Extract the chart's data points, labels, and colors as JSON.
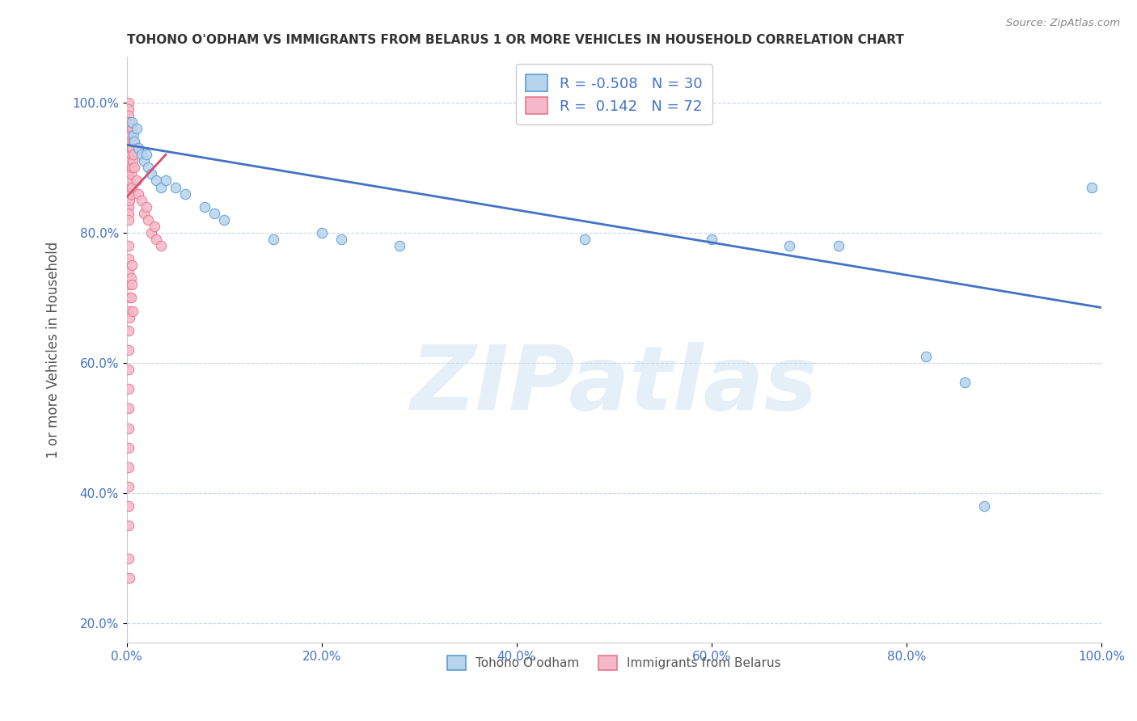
{
  "title": "TOHONO O'ODHAM VS IMMIGRANTS FROM BELARUS 1 OR MORE VEHICLES IN HOUSEHOLD CORRELATION CHART",
  "source": "Source: ZipAtlas.com",
  "ylabel": "1 or more Vehicles in Household",
  "watermark": "ZIPatlas",
  "blue_label": "Tohono O'odham",
  "pink_label": "Immigrants from Belarus",
  "blue_R": -0.508,
  "blue_N": 30,
  "pink_R": 0.142,
  "pink_N": 72,
  "blue_color": "#b8d4ec",
  "pink_color": "#f5b8c8",
  "blue_edge_color": "#5b9bd5",
  "pink_edge_color": "#e8768c",
  "blue_line_color": "#4472c4",
  "pink_line_color": "#d05070",
  "blue_scatter": [
    [
      0.005,
      0.97
    ],
    [
      0.007,
      0.95
    ],
    [
      0.008,
      0.94
    ],
    [
      0.01,
      0.96
    ],
    [
      0.012,
      0.93
    ],
    [
      0.015,
      0.92
    ],
    [
      0.018,
      0.91
    ],
    [
      0.02,
      0.92
    ],
    [
      0.022,
      0.9
    ],
    [
      0.025,
      0.89
    ],
    [
      0.03,
      0.88
    ],
    [
      0.035,
      0.87
    ],
    [
      0.04,
      0.88
    ],
    [
      0.05,
      0.87
    ],
    [
      0.06,
      0.86
    ],
    [
      0.08,
      0.84
    ],
    [
      0.09,
      0.83
    ],
    [
      0.1,
      0.82
    ],
    [
      0.15,
      0.79
    ],
    [
      0.2,
      0.8
    ],
    [
      0.22,
      0.79
    ],
    [
      0.28,
      0.78
    ],
    [
      0.47,
      0.79
    ],
    [
      0.6,
      0.79
    ],
    [
      0.68,
      0.78
    ],
    [
      0.73,
      0.78
    ],
    [
      0.82,
      0.61
    ],
    [
      0.86,
      0.57
    ],
    [
      0.88,
      0.38
    ],
    [
      0.99,
      0.87
    ]
  ],
  "pink_scatter": [
    [
      0.002,
      1.0
    ],
    [
      0.002,
      0.99
    ],
    [
      0.002,
      0.98
    ],
    [
      0.002,
      0.97
    ],
    [
      0.002,
      0.96
    ],
    [
      0.002,
      0.95
    ],
    [
      0.002,
      0.94
    ],
    [
      0.002,
      0.93
    ],
    [
      0.002,
      0.92
    ],
    [
      0.002,
      0.91
    ],
    [
      0.002,
      0.9
    ],
    [
      0.002,
      0.89
    ],
    [
      0.002,
      0.88
    ],
    [
      0.002,
      0.87
    ],
    [
      0.002,
      0.86
    ],
    [
      0.002,
      0.85
    ],
    [
      0.002,
      0.84
    ],
    [
      0.002,
      0.83
    ],
    [
      0.002,
      0.82
    ],
    [
      0.003,
      0.97
    ],
    [
      0.003,
      0.94
    ],
    [
      0.003,
      0.91
    ],
    [
      0.003,
      0.88
    ],
    [
      0.003,
      0.85
    ],
    [
      0.004,
      0.95
    ],
    [
      0.004,
      0.92
    ],
    [
      0.004,
      0.89
    ],
    [
      0.004,
      0.86
    ],
    [
      0.005,
      0.96
    ],
    [
      0.005,
      0.93
    ],
    [
      0.005,
      0.9
    ],
    [
      0.005,
      0.87
    ],
    [
      0.006,
      0.94
    ],
    [
      0.006,
      0.91
    ],
    [
      0.007,
      0.92
    ],
    [
      0.008,
      0.9
    ],
    [
      0.01,
      0.88
    ],
    [
      0.012,
      0.86
    ],
    [
      0.015,
      0.85
    ],
    [
      0.018,
      0.83
    ],
    [
      0.02,
      0.84
    ],
    [
      0.022,
      0.82
    ],
    [
      0.025,
      0.8
    ],
    [
      0.028,
      0.81
    ],
    [
      0.03,
      0.79
    ],
    [
      0.035,
      0.78
    ],
    [
      0.002,
      0.78
    ],
    [
      0.002,
      0.76
    ],
    [
      0.002,
      0.74
    ],
    [
      0.002,
      0.72
    ],
    [
      0.002,
      0.68
    ],
    [
      0.002,
      0.65
    ],
    [
      0.002,
      0.62
    ],
    [
      0.002,
      0.59
    ],
    [
      0.002,
      0.56
    ],
    [
      0.002,
      0.53
    ],
    [
      0.002,
      0.5
    ],
    [
      0.002,
      0.47
    ],
    [
      0.002,
      0.44
    ],
    [
      0.002,
      0.41
    ],
    [
      0.002,
      0.38
    ],
    [
      0.002,
      0.35
    ],
    [
      0.003,
      0.7
    ],
    [
      0.003,
      0.67
    ],
    [
      0.004,
      0.73
    ],
    [
      0.004,
      0.7
    ],
    [
      0.005,
      0.75
    ],
    [
      0.005,
      0.72
    ],
    [
      0.006,
      0.68
    ],
    [
      0.002,
      0.3
    ],
    [
      0.003,
      0.27
    ]
  ],
  "xlim": [
    0.0,
    1.0
  ],
  "ylim": [
    0.17,
    1.07
  ],
  "blue_trend_x": [
    0.0,
    1.0
  ],
  "blue_trend_y": [
    0.935,
    0.685
  ],
  "pink_trend_x": [
    0.0,
    0.04
  ],
  "pink_trend_y": [
    0.855,
    0.92
  ],
  "x_ticks": [
    0.0,
    0.2,
    0.4,
    0.6,
    0.8,
    1.0
  ],
  "y_ticks": [
    0.2,
    0.4,
    0.6,
    0.8,
    1.0
  ],
  "title_fontsize": 11,
  "tick_fontsize": 11,
  "ylabel_fontsize": 12,
  "marker_size": 80,
  "line_width": 2.0,
  "watermark_fontsize": 80,
  "background_color": "#ffffff",
  "grid_color": "#b0c4de",
  "tick_color": "#4472c4",
  "source_color": "#888888",
  "title_color": "#333333",
  "ylabel_color": "#555555"
}
